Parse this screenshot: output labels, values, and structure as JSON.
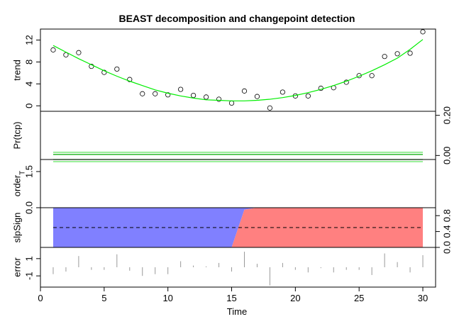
{
  "chart_data": {
    "type": "line",
    "title": "BEAST decomposition and changepoint detection",
    "xlabel": "Time",
    "xlim": [
      0,
      31
    ],
    "x_ticks": [
      0,
      5,
      10,
      15,
      20,
      25,
      30
    ],
    "x": [
      1,
      2,
      3,
      4,
      5,
      6,
      7,
      8,
      9,
      10,
      11,
      12,
      13,
      14,
      15,
      16,
      17,
      18,
      19,
      20,
      21,
      22,
      23,
      24,
      25,
      26,
      27,
      28,
      29,
      30
    ],
    "panels": [
      {
        "key": "trend",
        "ylabel": "trend",
        "ylim": [
          -1,
          14
        ],
        "y_ticks": [
          0,
          4,
          8,
          12
        ],
        "tick_side": "left",
        "series": [
          {
            "name": "observed",
            "style": "points",
            "values": [
              10.2,
              9.3,
              9.7,
              7.2,
              6.1,
              6.7,
              4.8,
              2.2,
              2.2,
              2.0,
              3.0,
              1.9,
              1.6,
              1.2,
              0.5,
              2.7,
              1.7,
              -0.4,
              2.5,
              1.8,
              1.8,
              3.2,
              3.3,
              4.3,
              5.5,
              5.5,
              9.0,
              9.5,
              9.6,
              13.5
            ]
          },
          {
            "name": "trend fit",
            "style": "line",
            "color": "#00ee00",
            "values": [
              11.0,
              9.8,
              8.6,
              7.5,
              6.4,
              5.4,
              4.5,
              3.7,
              2.9,
              2.3,
              1.8,
              1.4,
              1.1,
              1.0,
              0.9,
              0.9,
              1.0,
              1.2,
              1.5,
              1.9,
              2.4,
              3.0,
              3.7,
              4.5,
              5.4,
              6.4,
              7.5,
              8.7,
              10.3,
              12.1
            ]
          }
        ]
      },
      {
        "key": "tcp",
        "ylabel": "Pr(tcp)",
        "ylim": [
          -0.02,
          0.22
        ],
        "y_ticks": [
          0.0,
          0.2
        ],
        "y_tick_labels": [
          "0.00",
          "0.20"
        ],
        "tick_side": "right",
        "series": [
          {
            "name": "Pr(tcp)",
            "style": "line",
            "color": "#00aa00",
            "values": [
              0.005,
              0.005,
              0.005,
              0.005,
              0.005,
              0.005,
              0.005,
              0.005,
              0.005,
              0.005,
              0.005,
              0.005,
              0.005,
              0.005,
              0.005,
              0.005,
              0.005,
              0.005,
              0.005,
              0.005,
              0.005,
              0.005,
              0.005,
              0.005,
              0.005,
              0.005,
              0.005,
              0.005,
              0.005,
              0.005
            ]
          }
        ]
      },
      {
        "key": "order",
        "ylabel_main": "order",
        "ylabel_sub": "T",
        "ylim": [
          0,
          2.0
        ],
        "y_ticks": [
          0.0,
          1.5
        ],
        "y_tick_labels": [
          "0.0",
          "1.5"
        ],
        "tick_side": "left",
        "series": [
          {
            "name": "order",
            "style": "line",
            "color": "#00aa00",
            "values": [
              2,
              2,
              2,
              2,
              2,
              2,
              2,
              2,
              2,
              2,
              2,
              2,
              2,
              2,
              2,
              2,
              2,
              2,
              2,
              2,
              2,
              2,
              2,
              2,
              2,
              2,
              2,
              2,
              2,
              2
            ]
          }
        ]
      },
      {
        "key": "slpsign",
        "ylabel": "slpSign",
        "ylim": [
          0,
          1
        ],
        "y_ticks": [
          0.0,
          0.4,
          0.8
        ],
        "y_tick_labels": [
          "0.0",
          "0.4",
          "0.8"
        ],
        "tick_side": "right",
        "series": [
          {
            "name": "prob negative slope",
            "style": "band",
            "color": "#8080ff",
            "values": [
              1,
              1,
              1,
              1,
              1,
              1,
              1,
              1,
              1,
              1,
              1,
              1,
              1,
              1,
              1,
              0.05,
              0,
              0,
              0,
              0,
              0,
              0,
              0,
              0,
              0,
              0,
              0,
              0,
              0,
              0
            ]
          },
          {
            "name": "prob positive slope",
            "style": "band",
            "color": "#ff8080",
            "values": [
              0,
              0,
              0,
              0,
              0,
              0,
              0,
              0,
              0.01,
              0.01,
              0.01,
              0.01,
              0,
              0,
              0,
              0.95,
              1,
              1,
              1,
              1,
              1,
              1,
              1,
              1,
              1,
              1,
              1,
              1,
              1,
              1
            ]
          },
          {
            "name": "reference 0.5",
            "style": "dashed",
            "color": "#000000",
            "values": [
              0.5,
              0.5,
              0.5,
              0.5,
              0.5,
              0.5,
              0.5,
              0.5,
              0.5,
              0.5,
              0.5,
              0.5,
              0.5,
              0.5,
              0.5,
              0.5,
              0.5,
              0.5,
              0.5,
              0.5,
              0.5,
              0.5,
              0.5,
              0.5,
              0.5,
              0.5,
              0.5,
              0.5,
              0.5,
              0.5
            ]
          }
        ]
      },
      {
        "key": "error",
        "ylabel": "error",
        "ylim": [
          -2.3,
          2.3
        ],
        "y_ticks": [
          -1,
          1
        ],
        "y_tick_labels": [
          "-1",
          "1"
        ],
        "tick_side": "left",
        "series": [
          {
            "name": "residual",
            "style": "stems",
            "color": "#999999",
            "values": [
              -0.8,
              -0.5,
              1.3,
              -0.3,
              -0.3,
              1.5,
              -0.4,
              -1.0,
              -0.8,
              -0.8,
              0.7,
              0.2,
              0.1,
              0.5,
              -0.5,
              1.8,
              0.4,
              -2.1,
              0.5,
              -0.3,
              -0.6,
              -0.1,
              -0.6,
              -0.3,
              -0.3,
              -0.9,
              1.6,
              0.6,
              -0.6,
              1.4
            ]
          }
        ]
      }
    ]
  }
}
